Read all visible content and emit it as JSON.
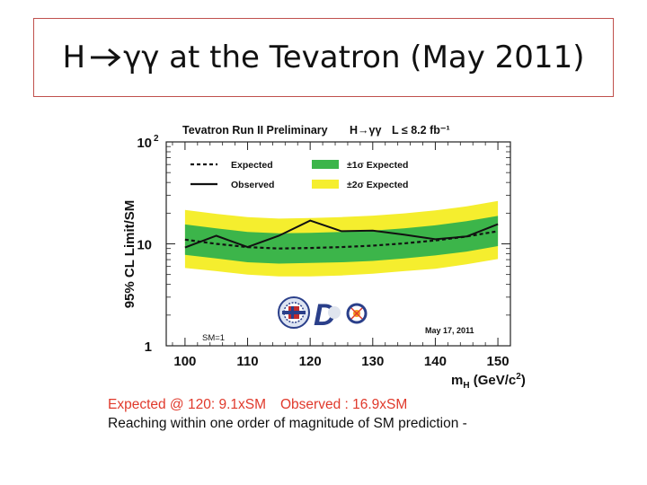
{
  "slide": {
    "title_prefix": "H",
    "title_rest": "γγ at the Tevatron (May 2011)",
    "caption_expected": "Expected @ 120: 9.1xSM",
    "caption_observed": "Observed : 16.9xSM",
    "caption_note": "Reaching within one order of magnitude of SM prediction -"
  },
  "colors": {
    "title_border": "#c0504d",
    "band_1sigma": "#3cb54a",
    "band_2sigma": "#f5ee2e",
    "caption_red": "#e0392b"
  },
  "chart_data": {
    "type": "line",
    "title": "Tevatron Run II Preliminary",
    "title_process": "H→γγ",
    "title_lumi": "L ≤ 8.2 fb⁻¹",
    "xlabel": "m_H (GeV/c²)",
    "ylabel": "95% CL Limit/SM",
    "xlim": [
      97,
      152
    ],
    "ylim": [
      1,
      100
    ],
    "yscale": "log",
    "x_ticks": [
      "100",
      "110",
      "120",
      "130",
      "140",
      "150"
    ],
    "y_ticks": [
      {
        "value": 100,
        "label": "10",
        "sup": "2"
      },
      {
        "value": 10,
        "label": "10",
        "sup": ""
      },
      {
        "value": 1,
        "label": "1",
        "sup": ""
      }
    ],
    "legend": {
      "placement": "top",
      "entries": [
        {
          "label": "Expected",
          "style": "dashed"
        },
        {
          "label": "Observed",
          "style": "solid"
        },
        {
          "label": "±1σ Expected",
          "style": "band-green"
        },
        {
          "label": "±2σ Expected",
          "style": "band-yellow"
        }
      ]
    },
    "annotations": {
      "sm_label": "SM=1",
      "date": "May 17, 2011"
    },
    "x": [
      100,
      105,
      110,
      115,
      120,
      125,
      130,
      135,
      140,
      145,
      150
    ],
    "series": [
      {
        "name": "Expected",
        "values": [
          11.0,
          10.0,
          9.3,
          9.0,
          9.1,
          9.3,
          9.6,
          10.1,
          10.8,
          11.8,
          13.3
        ]
      },
      {
        "name": "Observed",
        "values": [
          9.2,
          12.0,
          9.3,
          12.0,
          16.9,
          13.3,
          13.5,
          12.3,
          11.1,
          11.8,
          15.6
        ]
      }
    ],
    "band_1sigma": {
      "lower": [
        7.8,
        7.2,
        6.6,
        6.4,
        6.5,
        6.6,
        6.8,
        7.2,
        7.7,
        8.4,
        9.5
      ],
      "upper": [
        15.5,
        14.2,
        13.1,
        12.7,
        12.8,
        13.1,
        13.5,
        14.2,
        15.2,
        16.7,
        18.8
      ]
    },
    "band_2sigma": {
      "lower": [
        5.8,
        5.4,
        5.0,
        4.8,
        4.8,
        4.9,
        5.1,
        5.4,
        5.7,
        6.3,
        7.1
      ],
      "upper": [
        21.5,
        19.7,
        18.3,
        17.7,
        17.9,
        18.3,
        18.9,
        19.9,
        21.3,
        23.3,
        26.3
      ]
    }
  }
}
